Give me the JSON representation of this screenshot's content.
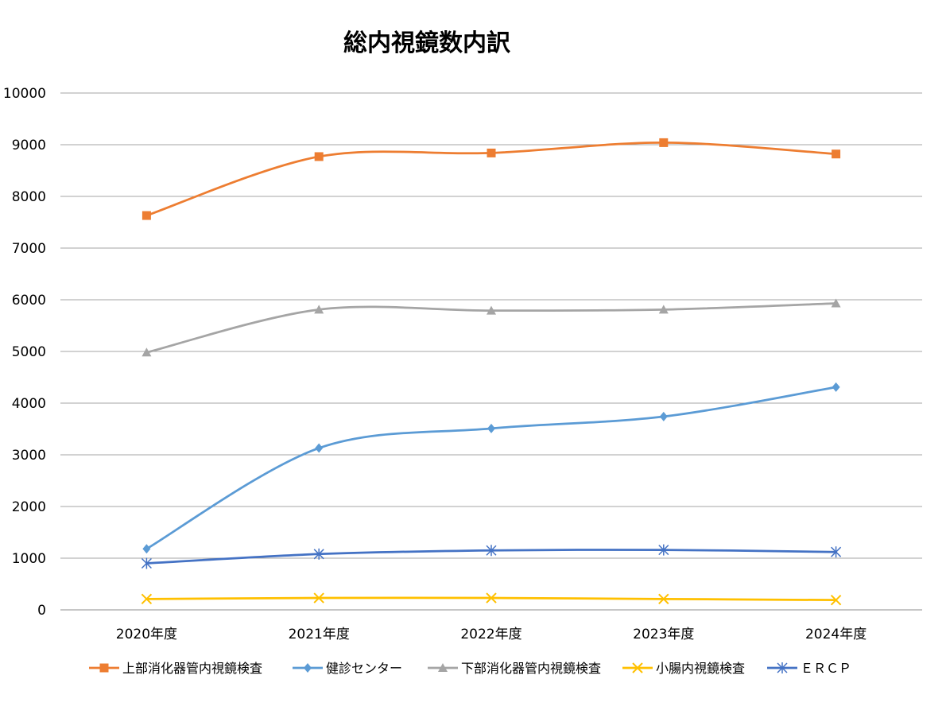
{
  "chart_data": {
    "type": "line",
    "title": "総内視鏡数内訳",
    "xlabel": "",
    "ylabel": "",
    "categories": [
      "2020年度",
      "2021年度",
      "2022年度",
      "2023年度",
      "2024年度"
    ],
    "ylim": [
      0,
      10000
    ],
    "yticks": [
      0,
      1000,
      2000,
      3000,
      4000,
      5000,
      6000,
      7000,
      8000,
      9000,
      10000
    ],
    "grid": true,
    "legend_position": "bottom",
    "series": [
      {
        "name": "上部消化器管内視鏡検査",
        "color": "#ED7D31",
        "marker": "square",
        "values": [
          7630,
          8770,
          8840,
          9040,
          8820
        ]
      },
      {
        "name": "健診センター",
        "color": "#5B9BD5",
        "marker": "diamond",
        "values": [
          1180,
          3130,
          3510,
          3740,
          4310
        ]
      },
      {
        "name": "下部消化器管内視鏡検査",
        "color": "#A5A5A5",
        "marker": "triangle",
        "values": [
          4980,
          5810,
          5790,
          5810,
          5930
        ]
      },
      {
        "name": "小腸内視鏡検査",
        "color": "#FFC000",
        "marker": "x",
        "values": [
          210,
          230,
          230,
          210,
          190
        ]
      },
      {
        "name": "ＥＲＣＰ",
        "color": "#4472C4",
        "marker": "star",
        "values": [
          900,
          1080,
          1150,
          1160,
          1120
        ]
      }
    ]
  }
}
